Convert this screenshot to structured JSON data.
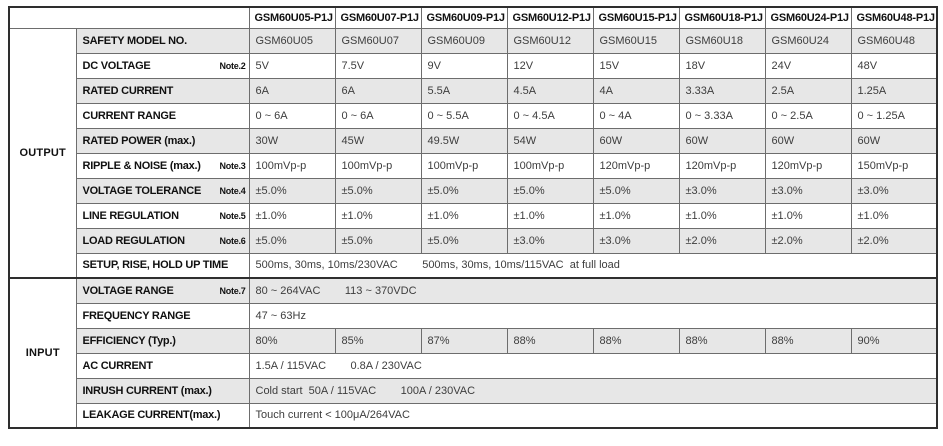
{
  "table": {
    "corner": "",
    "models": [
      "GSM60U05-P1J",
      "GSM60U07-P1J",
      "GSM60U09-P1J",
      "GSM60U12-P1J",
      "GSM60U15-P1J",
      "GSM60U18-P1J",
      "GSM60U24-P1J",
      "GSM60U48-P1J"
    ],
    "sections": [
      {
        "name": "OUTPUT",
        "rows": [
          {
            "label": "SAFETY MODEL NO.",
            "note": "",
            "values": [
              "GSM60U05",
              "GSM60U07",
              "GSM60U09",
              "GSM60U12",
              "GSM60U15",
              "GSM60U18",
              "GSM60U24",
              "GSM60U48"
            ]
          },
          {
            "label": "DC VOLTAGE",
            "note": "Note.2",
            "values": [
              "5V",
              "7.5V",
              "9V",
              "12V",
              "15V",
              "18V",
              "24V",
              "48V"
            ]
          },
          {
            "label": "RATED CURRENT",
            "note": "",
            "values": [
              "6A",
              "6A",
              "5.5A",
              "4.5A",
              "4A",
              "3.33A",
              "2.5A",
              "1.25A"
            ]
          },
          {
            "label": "CURRENT RANGE",
            "note": "",
            "values": [
              "0 ~ 6A",
              "0 ~ 6A",
              "0 ~ 5.5A",
              "0 ~ 4.5A",
              "0 ~ 4A",
              "0 ~ 3.33A",
              "0 ~ 2.5A",
              "0 ~ 1.25A"
            ]
          },
          {
            "label": "RATED POWER (max.)",
            "note": "",
            "values": [
              "30W",
              "45W",
              "49.5W",
              "54W",
              "60W",
              "60W",
              "60W",
              "60W"
            ]
          },
          {
            "label": "RIPPLE & NOISE (max.)",
            "note": "Note.3",
            "values": [
              "100mVp-p",
              "100mVp-p",
              "100mVp-p",
              "100mVp-p",
              "120mVp-p",
              "120mVp-p",
              "120mVp-p",
              "150mVp-p"
            ]
          },
          {
            "label": "VOLTAGE TOLERANCE",
            "note": "Note.4",
            "values": [
              "±5.0%",
              "±5.0%",
              "±5.0%",
              "±5.0%",
              "±5.0%",
              "±3.0%",
              "±3.0%",
              "±3.0%"
            ]
          },
          {
            "label": "LINE REGULATION",
            "note": "Note.5",
            "values": [
              "±1.0%",
              "±1.0%",
              "±1.0%",
              "±1.0%",
              "±1.0%",
              "±1.0%",
              "±1.0%",
              "±1.0%"
            ]
          },
          {
            "label": "LOAD REGULATION",
            "note": "Note.6",
            "values": [
              "±5.0%",
              "±5.0%",
              "±5.0%",
              "±3.0%",
              "±3.0%",
              "±2.0%",
              "±2.0%",
              "±2.0%"
            ]
          },
          {
            "label": "SETUP, RISE, HOLD UP TIME",
            "note": "",
            "span": "500ms, 30ms, 10ms/230VAC        500ms, 30ms, 10ms/115VAC  at full load"
          }
        ]
      },
      {
        "name": "INPUT",
        "rows": [
          {
            "label": "VOLTAGE RANGE",
            "note": "Note.7",
            "span": "80 ~ 264VAC        113 ~ 370VDC"
          },
          {
            "label": "FREQUENCY RANGE",
            "note": "",
            "span": "47 ~ 63Hz"
          },
          {
            "label": "EFFICIENCY (Typ.)",
            "note": "",
            "values": [
              "80%",
              "85%",
              "87%",
              "88%",
              "88%",
              "88%",
              "88%",
              "90%"
            ]
          },
          {
            "label": "AC CURRENT",
            "note": "",
            "span": "1.5A / 115VAC        0.8A / 230VAC"
          },
          {
            "label": "INRUSH CURRENT (max.)",
            "note": "",
            "span": "Cold start  50A / 115VAC        100A / 230VAC"
          },
          {
            "label": "LEAKAGE CURRENT(max.)",
            "note": "",
            "span": "Touch current < 100μA/264VAC"
          }
        ]
      }
    ]
  },
  "colors": {
    "row_shade": "#e7e7e7",
    "border_outer": "#2e2e2e",
    "border_inner": "#6d6d6d",
    "label_text": "#101010",
    "value_text": "#3d3d3d"
  }
}
